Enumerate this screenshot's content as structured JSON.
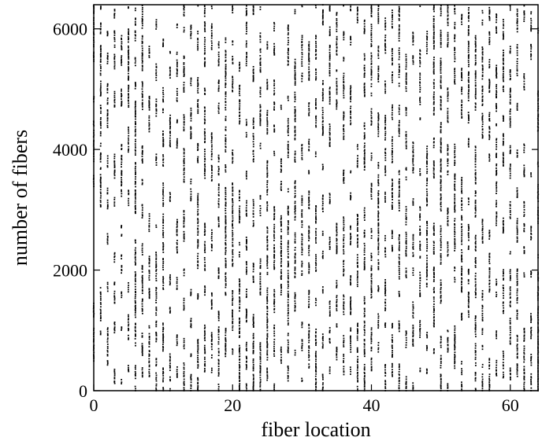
{
  "chart_data": {
    "type": "scatter",
    "title": "",
    "xlabel": "fiber location",
    "ylabel": "number of fibers",
    "xlim": [
      0,
      64
    ],
    "ylim": [
      0,
      6400
    ],
    "xticks": [
      0,
      20,
      40,
      60
    ],
    "yticks": [
      0,
      2000,
      4000,
      6000
    ],
    "grid": false,
    "legend": "none",
    "marker_color": "#000000",
    "series": [
      {
        "description_values": "Each fiber location (integer positions 0..64) contains a random subset of fiber indices (0..~6400) plotted as dots; points are distributed roughly uniformly with ~1 point per ~2.5 units of x per fiber index.",
        "x_positions": "integers 0 to 64",
        "y_range": [
          0,
          6400
        ]
      }
    ]
  }
}
